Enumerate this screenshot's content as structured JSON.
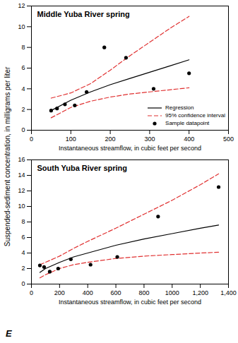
{
  "y_label": "Suspended-sediment concentration, in milligrams per liter",
  "panel_label": "E",
  "chart_data": [
    {
      "type": "scatter",
      "title": "Middle Yuba River spring",
      "x_label": "Instantaneous streamflow, in cubic feet per second",
      "xlim": [
        0,
        500
      ],
      "xticks": [
        0,
        100,
        200,
        300,
        400,
        500
      ],
      "ylim": [
        0,
        12
      ],
      "yticks": [
        0,
        2,
        4,
        6,
        8,
        10,
        12
      ],
      "grid": false,
      "legend": "bottom-right",
      "series": [
        {
          "name": "Regression",
          "type": "line",
          "color": "#000000",
          "line_style": "solid",
          "x": [
            50,
            100,
            150,
            200,
            250,
            300,
            350,
            400
          ],
          "values": [
            1.9,
            2.9,
            3.7,
            4.4,
            5.0,
            5.6,
            6.2,
            6.8
          ]
        },
        {
          "name": "95% confidence interval",
          "type": "band",
          "color": "#e03030",
          "line_style": "dashed",
          "x": [
            50,
            100,
            150,
            200,
            250,
            300,
            350,
            400
          ],
          "upper": [
            3.1,
            3.6,
            4.5,
            5.8,
            7.2,
            8.5,
            9.8,
            11.0
          ],
          "lower": [
            1.2,
            2.2,
            2.8,
            3.2,
            3.5,
            3.7,
            3.9,
            4.1
          ]
        },
        {
          "name": "Sample datapoint",
          "type": "scatter",
          "color": "#000000",
          "marker": "circle",
          "x": [
            50,
            65,
            85,
            110,
            140,
            185,
            240,
            310,
            400
          ],
          "values": [
            1.9,
            2.1,
            2.5,
            2.4,
            3.7,
            8.0,
            7.0,
            4.0,
            5.5
          ]
        }
      ]
    },
    {
      "type": "scatter",
      "title": "South Yuba River spring",
      "x_label": "Instantaneous streamflow, in cubic feet per second",
      "xlim": [
        0,
        1400
      ],
      "xticks": [
        0,
        200,
        400,
        600,
        800,
        1000,
        {
          "value": 1200,
          "label": "1,200"
        },
        {
          "value": 1400,
          "label": "1,400"
        }
      ],
      "ylim": [
        0,
        16
      ],
      "yticks": [
        0,
        2,
        4,
        6,
        8,
        10,
        12,
        14,
        16
      ],
      "grid": false,
      "series": [
        {
          "name": "Regression",
          "type": "line",
          "color": "#000000",
          "line_style": "solid",
          "x": [
            60,
            100,
            200,
            300,
            400,
            600,
            800,
            1000,
            1200,
            1330
          ],
          "values": [
            1.5,
            2.0,
            2.8,
            3.5,
            4.0,
            5.0,
            5.8,
            6.5,
            7.2,
            7.6
          ]
        },
        {
          "name": "95% confidence interval",
          "type": "band",
          "color": "#e03030",
          "line_style": "dashed",
          "x": [
            60,
            100,
            200,
            300,
            400,
            600,
            800,
            1000,
            1200,
            1330
          ],
          "upper": [
            2.5,
            2.8,
            3.6,
            4.6,
            5.5,
            7.2,
            9.0,
            10.8,
            12.8,
            14.2
          ],
          "lower": [
            0.8,
            1.2,
            2.0,
            2.5,
            2.8,
            3.3,
            3.6,
            3.8,
            4.0,
            4.1
          ]
        },
        {
          "name": "Sample datapoint",
          "type": "scatter",
          "color": "#000000",
          "marker": "circle",
          "x": [
            60,
            90,
            130,
            190,
            280,
            420,
            610,
            900,
            1330
          ],
          "values": [
            2.4,
            2.2,
            1.6,
            2.0,
            3.2,
            2.5,
            3.5,
            8.7,
            12.5
          ]
        }
      ]
    }
  ]
}
